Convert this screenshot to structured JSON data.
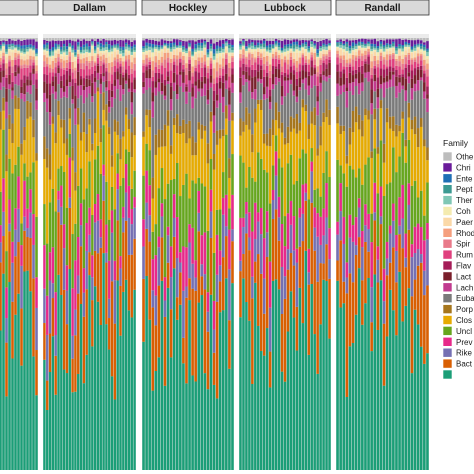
{
  "chart_data": {
    "type": "bar",
    "stacked": "proportional",
    "facets": [
      {
        "name": "",
        "n_samples": 14
      },
      {
        "name": "Dallam",
        "n_samples": 33
      },
      {
        "name": "Hockley",
        "n_samples": 30
      },
      {
        "name": "Lubbock",
        "n_samples": 31
      },
      {
        "name": "Randall",
        "n_samples": 30
      }
    ],
    "ylim": [
      0,
      1
    ],
    "legend": {
      "title": "Family",
      "placement": "right",
      "entries": [
        {
          "label": "Othe",
          "color": "#BDBDBD"
        },
        {
          "label": "Chri",
          "color": "#6A1B9A"
        },
        {
          "label": "Ente",
          "color": "#1E6FB5"
        },
        {
          "label": "Pept",
          "color": "#3C9A92"
        },
        {
          "label": "Ther",
          "color": "#7FC7B5"
        },
        {
          "label": "Coh",
          "color": "#F4EBB0"
        },
        {
          "label": "Paer",
          "color": "#FBD9A8"
        },
        {
          "label": "Rhod",
          "color": "#F59F7E"
        },
        {
          "label": "Spir",
          "color": "#E97A8A"
        },
        {
          "label": "Rum",
          "color": "#E0407E"
        },
        {
          "label": "Flav",
          "color": "#A51C58"
        },
        {
          "label": "Lact",
          "color": "#7A1F2B"
        },
        {
          "label": "Lach",
          "color": "#C13B8F"
        },
        {
          "label": "Euba",
          "color": "#7A7A7A"
        },
        {
          "label": "Porp",
          "color": "#A6761D"
        },
        {
          "label": "Clos",
          "color": "#E6AB02"
        },
        {
          "label": "Uncl",
          "color": "#66A61E"
        },
        {
          "label": "Prev",
          "color": "#E7298A"
        },
        {
          "label": "Rike",
          "color": "#7570B3"
        },
        {
          "label": "Bact",
          "color": "#D95F02"
        }
      ],
      "base_color": "#1B9E77"
    },
    "stack_order_bottom_to_top": [
      "Bact-base",
      "Bact",
      "Rike",
      "Prev",
      "Uncl",
      "Clos",
      "Porp",
      "Euba",
      "Lach",
      "Lact",
      "Flav",
      "Rum",
      "Spir",
      "Rhod",
      "Paer",
      "Coh",
      "Ther",
      "Pept",
      "Ente",
      "Chri",
      "Othe"
    ],
    "mean_proportions": {
      "base": 0.36,
      "Bact": 0.13,
      "Rike": 0.06,
      "Prev": 0.06,
      "Uncl": 0.1,
      "Clos": 0.1,
      "Porp": 0.03,
      "Euba": 0.06,
      "Lach": 0.02,
      "Lact": 0.02,
      "Flav": 0.015,
      "Rum": 0.015,
      "Spir": 0.01,
      "Rhod": 0.01,
      "Paer": 0.01,
      "Coh": 0.005,
      "Ther": 0.005,
      "Pept": 0.005,
      "Ente": 0.005,
      "Chri": 0.01,
      "Othe": 0.005
    }
  }
}
